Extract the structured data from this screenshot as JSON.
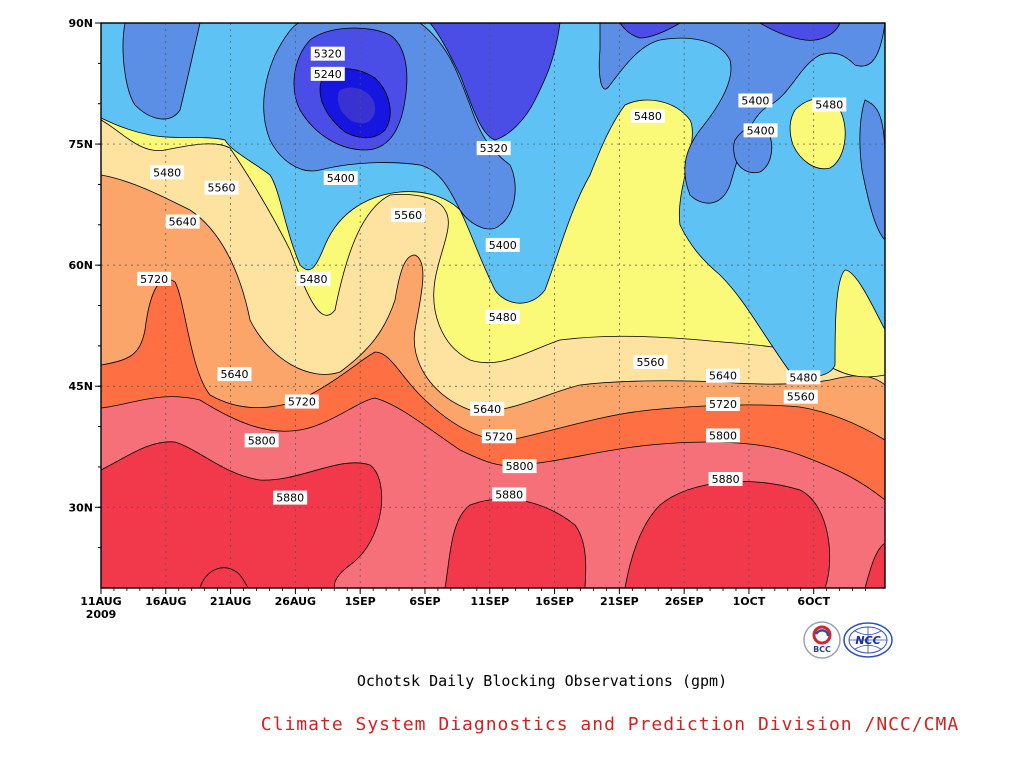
{
  "chart_data": {
    "type": "heatmap",
    "title": "Ochotsk Daily Blocking Observations (gpm)",
    "x": {
      "tick_labels": [
        "11AUG\n2009",
        "16AUG",
        "21AUG",
        "26AUG",
        "1SEP",
        "6SEP",
        "11SEP",
        "16SEP",
        "21SEP",
        "26SEP",
        "1OCT",
        "6OCT"
      ],
      "range_days": [
        0,
        60.5
      ]
    },
    "y": {
      "tick_labels": [
        "30N",
        "45N",
        "60N",
        "75N",
        "90N"
      ],
      "tick_values": [
        30,
        45,
        60,
        75,
        90
      ],
      "range": [
        20,
        90
      ]
    },
    "grid": true,
    "contour_levels": [
      5240,
      5320,
      5400,
      5480,
      5560,
      5640,
      5720,
      5800,
      5880
    ],
    "fill_colors": [
      "#3a32d0",
      "#1616e0",
      "#4a4ee6",
      "#5b8fe6",
      "#5fc2f5",
      "#fafa78",
      "#fde2a0",
      "#fca56a",
      "#fe6f43",
      "#f67079",
      "#f2384b"
    ],
    "contour_labels": [
      {
        "text": "5320",
        "day": 17.5,
        "lat": 86.2
      },
      {
        "text": "5240",
        "day": 17.5,
        "lat": 83.7
      },
      {
        "text": "5400",
        "day": 18.5,
        "lat": 70.8
      },
      {
        "text": "5320",
        "day": 30.3,
        "lat": 74.5
      },
      {
        "text": "5400",
        "day": 31.0,
        "lat": 62.5
      },
      {
        "text": "5480",
        "day": 31.0,
        "lat": 53.6
      },
      {
        "text": "5480",
        "day": 42.2,
        "lat": 78.5
      },
      {
        "text": "5400",
        "day": 50.5,
        "lat": 80.4
      },
      {
        "text": "5400",
        "day": 50.9,
        "lat": 76.7
      },
      {
        "text": "5480",
        "day": 56.2,
        "lat": 79.9
      },
      {
        "text": "5480",
        "day": 5.1,
        "lat": 71.5
      },
      {
        "text": "5560",
        "day": 9.3,
        "lat": 69.6
      },
      {
        "text": "5640",
        "day": 6.3,
        "lat": 65.4
      },
      {
        "text": "5720",
        "day": 4.1,
        "lat": 58.3
      },
      {
        "text": "5480",
        "day": 16.4,
        "lat": 58.3
      },
      {
        "text": "5560",
        "day": 23.7,
        "lat": 66.2
      },
      {
        "text": "5560",
        "day": 42.4,
        "lat": 48.0
      },
      {
        "text": "5640",
        "day": 10.3,
        "lat": 46.5
      },
      {
        "text": "5720",
        "day": 15.5,
        "lat": 43.1
      },
      {
        "text": "5640",
        "day": 29.8,
        "lat": 42.2
      },
      {
        "text": "5720",
        "day": 30.7,
        "lat": 38.8
      },
      {
        "text": "5640",
        "day": 48.0,
        "lat": 46.3
      },
      {
        "text": "5480",
        "day": 54.2,
        "lat": 46.1
      },
      {
        "text": "5720",
        "day": 48.0,
        "lat": 42.8
      },
      {
        "text": "5560",
        "day": 54.0,
        "lat": 43.7
      },
      {
        "text": "5800",
        "day": 12.4,
        "lat": 38.3
      },
      {
        "text": "5800",
        "day": 32.3,
        "lat": 35.1
      },
      {
        "text": "5800",
        "day": 48.0,
        "lat": 38.9
      },
      {
        "text": "5880",
        "day": 14.6,
        "lat": 31.2
      },
      {
        "text": "5880",
        "day": 31.5,
        "lat": 31.6
      },
      {
        "text": "5880",
        "day": 48.2,
        "lat": 33.5
      }
    ]
  },
  "chart_title": "Ochotsk Daily Blocking Observations (gpm)",
  "credit": "Climate System Diagnostics and Prediction Division /NCC/CMA",
  "logos": {
    "bcc_text": "BCC",
    "ncc_text": "NCC"
  },
  "colors": {
    "credit_text": "#d42020",
    "frame": "#000000"
  }
}
